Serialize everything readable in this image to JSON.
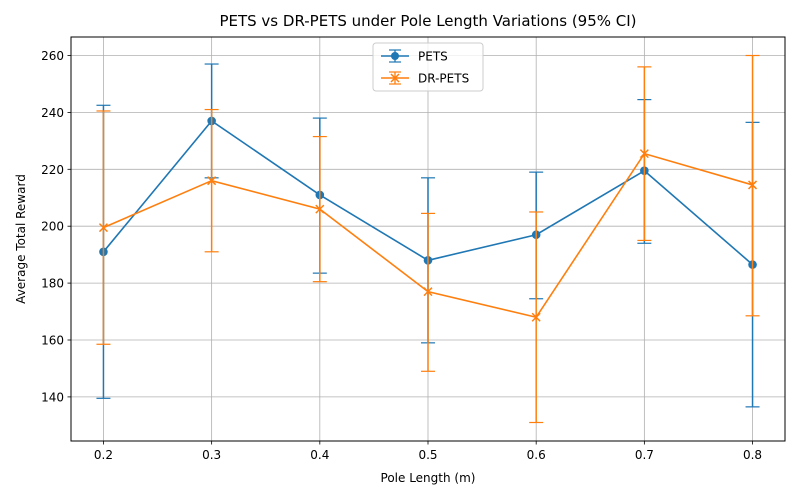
{
  "chart_data": {
    "type": "line",
    "title": "PETS vs DR-PETS under Pole Length Variations (95% CI)",
    "xlabel": "Pole Length (m)",
    "ylabel": "Average Total Reward",
    "x": [
      0.2,
      0.3,
      0.4,
      0.5,
      0.6,
      0.7,
      0.8
    ],
    "x_ticks": [
      "0.2",
      "0.3",
      "0.4",
      "0.5",
      "0.6",
      "0.7",
      "0.8"
    ],
    "y_ticks": [
      "140",
      "160",
      "180",
      "200",
      "220",
      "240",
      "260"
    ],
    "xlim": [
      0.17,
      0.83
    ],
    "ylim": [
      124.5,
      266.5
    ],
    "grid": true,
    "legend_position": "top-center",
    "series": [
      {
        "name": "PETS",
        "color": "#1f77b4",
        "marker": "circle",
        "values": [
          191.0,
          237.0,
          211.0,
          188.0,
          197.0,
          219.5,
          186.5
        ],
        "err_low": [
          139.5,
          217.0,
          183.5,
          159.0,
          174.5,
          194.0,
          136.5
        ],
        "err_high": [
          242.5,
          257.0,
          238.0,
          217.0,
          219.0,
          244.5,
          236.5
        ]
      },
      {
        "name": "DR-PETS",
        "color": "#ff7f0e",
        "marker": "x",
        "values": [
          199.5,
          216.0,
          206.0,
          177.0,
          168.0,
          225.5,
          214.5
        ],
        "err_low": [
          158.5,
          191.0,
          180.5,
          149.0,
          131.0,
          195.0,
          168.5
        ],
        "err_high": [
          240.5,
          241.0,
          231.5,
          204.5,
          205.0,
          256.0,
          260.0
        ]
      }
    ]
  }
}
